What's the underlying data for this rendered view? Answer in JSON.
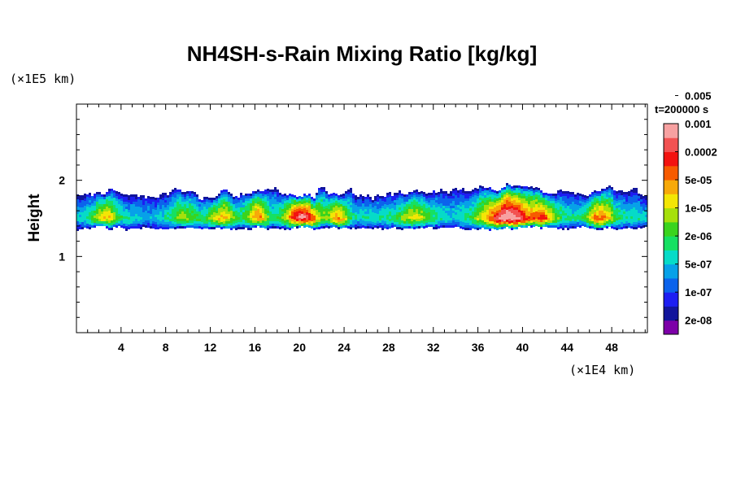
{
  "chart_data": {
    "type": "heatmap",
    "title": "NH4SH-s-Rain Mixing Ratio [kg/kg]",
    "xlabel": "",
    "ylabel": "Height",
    "x_unit": "(×1E4 km)",
    "y_unit": "(×1E5 km)",
    "time_label": "t=200000 s",
    "xlim": [
      0,
      51.2
    ],
    "ylim": [
      0,
      3
    ],
    "x_ticks": [
      4,
      8,
      12,
      16,
      20,
      24,
      28,
      32,
      36,
      40,
      44,
      48
    ],
    "y_ticks": [
      1,
      2
    ],
    "x_tick_labels": [
      "4",
      "8",
      "12",
      "16",
      "20",
      "24",
      "28",
      "32",
      "36",
      "40",
      "44",
      "48"
    ],
    "y_tick_labels": [
      "1",
      "2"
    ],
    "colorbar": {
      "colors": [
        "#7d00a8",
        "#12159c",
        "#1d1ef2",
        "#0b63ec",
        "#07a1e8",
        "#06dbc8",
        "#16e062",
        "#3ad41e",
        "#a6e00c",
        "#f3e605",
        "#f7a90a",
        "#f75b00",
        "#f31310",
        "#f25252",
        "#f7a1a1"
      ],
      "labels": [
        "2e-08",
        "1e-07",
        "5e-07",
        "2e-06",
        "1e-05",
        "5e-05",
        "0.0002",
        "0.001",
        "0.005"
      ]
    },
    "field_description": "rain mixing-ratio layer between ~1.35 and ~1.95 (×1E5 km) across the full x-range"
  }
}
